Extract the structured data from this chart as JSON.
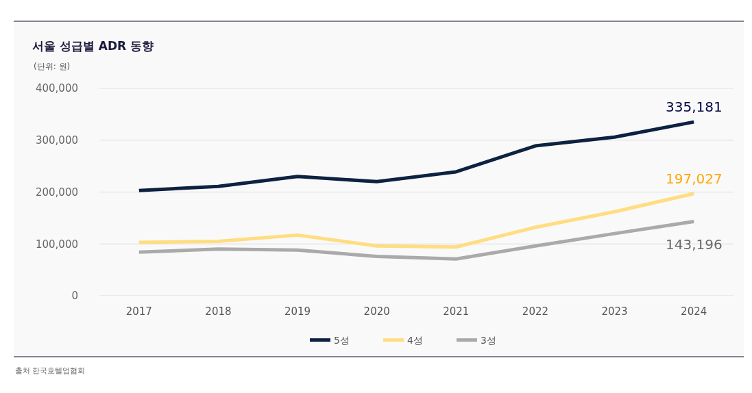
{
  "chart_data": {
    "type": "line",
    "title": "서울 성급별 ADR 동향",
    "subtitle": "(단위: 원)",
    "categories": [
      "2017",
      "2018",
      "2019",
      "2020",
      "2021",
      "2022",
      "2023",
      "2024"
    ],
    "series": [
      {
        "name": "5성",
        "color": "#0d2240",
        "values": [
          203000,
          211000,
          230000,
          220000,
          239000,
          289000,
          306000,
          335181
        ],
        "value_labels": [
          null,
          null,
          null,
          null,
          null,
          null,
          null,
          "335,181"
        ]
      },
      {
        "name": "4성",
        "color": "#ffdd80",
        "values": [
          103000,
          105000,
          117000,
          96000,
          94000,
          132000,
          162000,
          197027
        ],
        "value_labels": [
          null,
          null,
          null,
          null,
          null,
          null,
          null,
          "197,027"
        ]
      },
      {
        "name": "3성",
        "color": "#aaaaaa",
        "values": [
          84000,
          90000,
          88000,
          76000,
          71000,
          96000,
          120000,
          143196
        ],
        "value_labels": [
          null,
          null,
          null,
          null,
          null,
          null,
          null,
          "143,196"
        ]
      }
    ],
    "ylim": [
      0,
      400000
    ],
    "yticks": [
      {
        "value": 0,
        "label": "0"
      },
      {
        "value": 100000,
        "label": "100,000"
      },
      {
        "value": 200000,
        "label": "200,000"
      },
      {
        "value": 300000,
        "label": "300,000"
      },
      {
        "value": 400000,
        "label": "400,000"
      }
    ],
    "grid": "y",
    "legend": "bottom",
    "annotations": [
      "출처 한국호텔업협회"
    ]
  }
}
